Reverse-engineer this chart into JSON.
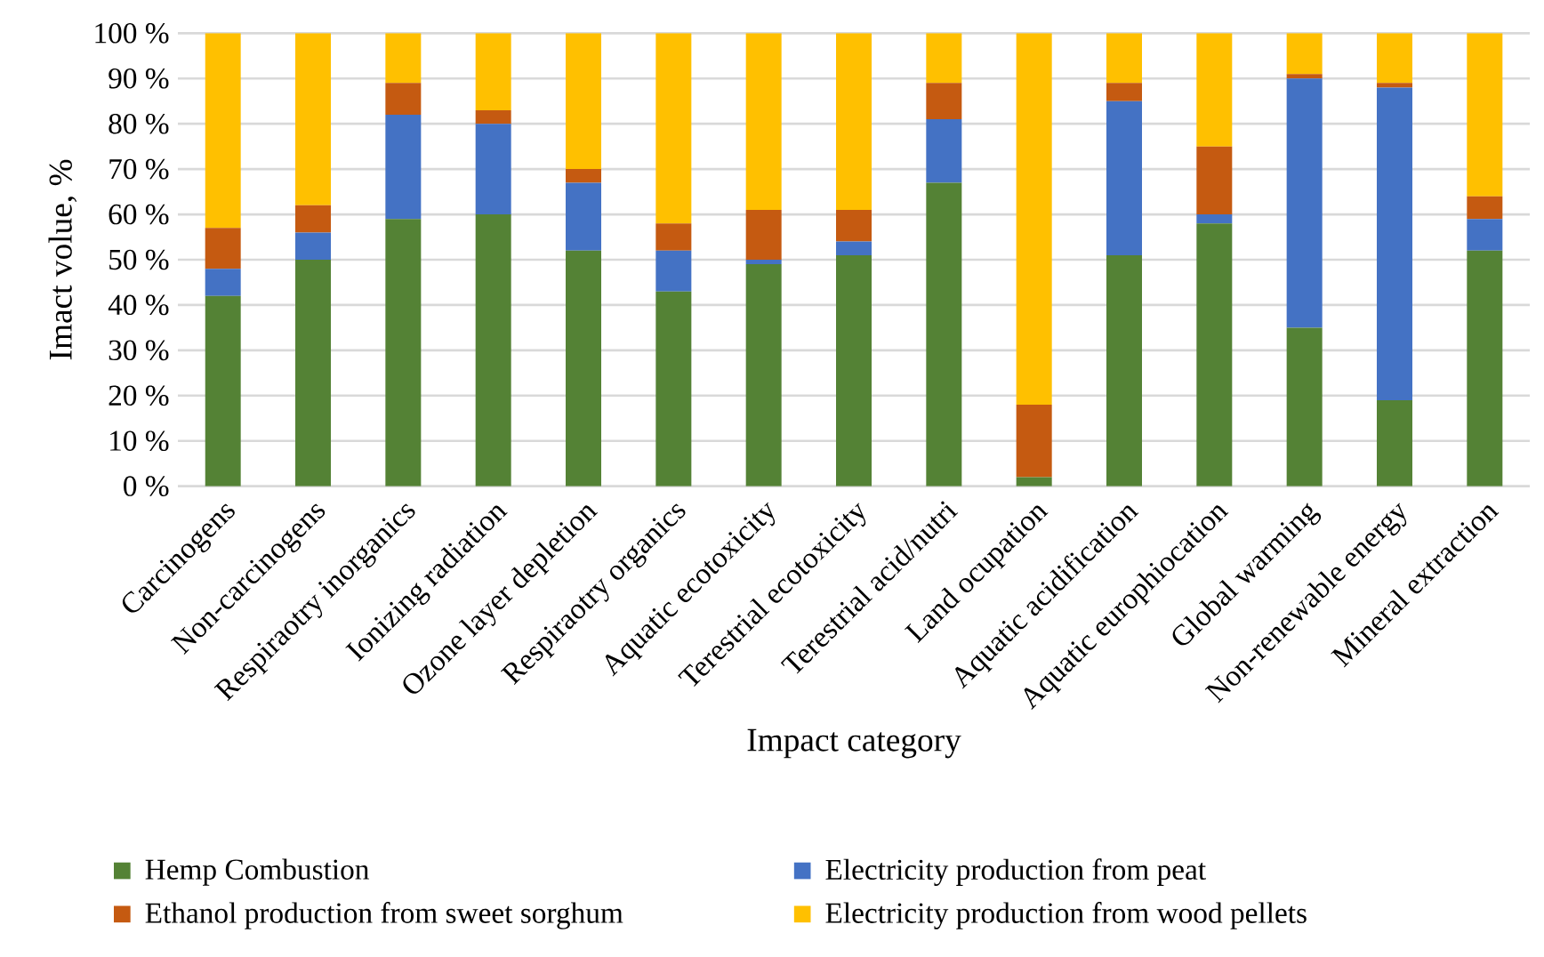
{
  "chart_data": {
    "type": "bar",
    "stacked": true,
    "xlabel": "Impact category",
    "ylabel": "Imact volue, %",
    "categories": [
      "Carcinogens",
      "Non-carcinogens",
      "Respiraotry inorganics",
      "Ionizing radiation",
      "Ozone layer depletion",
      "Respiraotry organics",
      "Aquatic ecotoxicity",
      "Terestrial ecotoxicity",
      "Terestrial acid/nutri",
      "Land ocupation",
      "Aquatic acidification",
      "Aquatic europhiocation",
      "Global warming",
      "Non-renewable energy",
      "Mineral extraction"
    ],
    "series": [
      {
        "name": "Hemp Combustion",
        "color": "#548235",
        "values": [
          42,
          50,
          59,
          60,
          52,
          43,
          49,
          51,
          67,
          2,
          51,
          58,
          35,
          19,
          52
        ]
      },
      {
        "name": "Electricity production from peat",
        "color": "#4472c4",
        "values": [
          6,
          6,
          23,
          20,
          15,
          9,
          1,
          3,
          14,
          0,
          34,
          2,
          55,
          69,
          7
        ]
      },
      {
        "name": "Ethanol production from sweet sorghum",
        "color": "#c55a11",
        "values": [
          9,
          6,
          7,
          3,
          3,
          6,
          11,
          7,
          8,
          16,
          4,
          15,
          1,
          1,
          5
        ]
      },
      {
        "name": "Electricity production from wood pellets",
        "color": "#ffc000",
        "values": [
          43,
          38,
          11,
          17,
          30,
          42,
          39,
          39,
          11,
          82,
          11,
          25,
          9,
          11,
          36
        ]
      }
    ],
    "ylim": [
      0,
      100
    ],
    "yticks": [
      {
        "value": 0,
        "label": "0 %"
      },
      {
        "value": 10,
        "label": "10 %"
      },
      {
        "value": 20,
        "label": "20 %"
      },
      {
        "value": 30,
        "label": "30 %"
      },
      {
        "value": 40,
        "label": "40 %"
      },
      {
        "value": 50,
        "label": "50 %"
      },
      {
        "value": 60,
        "label": "60 %"
      },
      {
        "value": 70,
        "label": "70 %"
      },
      {
        "value": 80,
        "label": "80 %"
      },
      {
        "value": 90,
        "label": "90 %"
      },
      {
        "value": 100,
        "label": "100 %"
      }
    ],
    "grid": "y",
    "legend": "bottom"
  }
}
